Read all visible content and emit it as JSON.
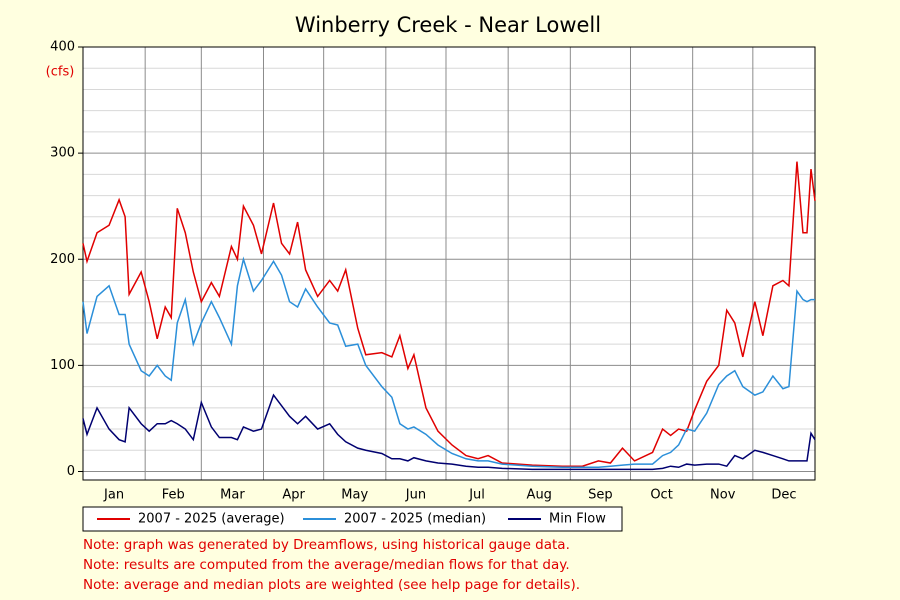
{
  "chart_data": {
    "type": "line",
    "title": "Winberry Creek - Near Lowell",
    "y_label": "(cfs)",
    "x": [
      1,
      3,
      8,
      14,
      19,
      22,
      24,
      30,
      34,
      38,
      42,
      45,
      48,
      52,
      56,
      60,
      65,
      69,
      75,
      78,
      81,
      86,
      90,
      96,
      100,
      104,
      108,
      112,
      118,
      124,
      128,
      132,
      138,
      142,
      150,
      155,
      159,
      163,
      166,
      172,
      178,
      185,
      192,
      198,
      203,
      210,
      225,
      240,
      250,
      258,
      264,
      270,
      276,
      285,
      290,
      294,
      298,
      302,
      306,
      312,
      318,
      322,
      326,
      330,
      336,
      340,
      345,
      350,
      353,
      357,
      360,
      362,
      364,
      366
    ],
    "series": [
      {
        "name": "2007 - 2025 (average)",
        "color": "#e00000",
        "values": [
          215,
          198,
          225,
          232,
          256,
          240,
          167,
          188,
          160,
          125,
          155,
          145,
          248,
          225,
          188,
          160,
          178,
          165,
          212,
          200,
          250,
          232,
          205,
          253,
          215,
          205,
          235,
          190,
          165,
          180,
          170,
          190,
          135,
          110,
          112,
          108,
          128,
          97,
          110,
          60,
          38,
          25,
          15,
          12,
          15,
          8,
          6,
          5,
          5,
          10,
          8,
          22,
          10,
          18,
          40,
          34,
          40,
          38,
          58,
          85,
          100,
          152,
          140,
          108,
          160,
          128,
          175,
          180,
          175,
          292,
          225,
          225,
          285,
          255
        ]
      },
      {
        "name": "2007 - 2025 (median)",
        "color": "#2b8fd9",
        "values": [
          160,
          130,
          165,
          175,
          148,
          148,
          120,
          95,
          90,
          100,
          90,
          86,
          140,
          162,
          120,
          140,
          160,
          145,
          120,
          175,
          200,
          170,
          180,
          198,
          185,
          160,
          155,
          172,
          155,
          140,
          138,
          118,
          120,
          100,
          80,
          70,
          45,
          40,
          42,
          35,
          25,
          17,
          12,
          10,
          10,
          7,
          5,
          4,
          4,
          4,
          5,
          6,
          7,
          7,
          15,
          18,
          25,
          40,
          38,
          55,
          82,
          90,
          95,
          80,
          72,
          75,
          90,
          78,
          80,
          170,
          162,
          160,
          162,
          162
        ]
      },
      {
        "name": "Min Flow",
        "color": "#000070",
        "values": [
          50,
          35,
          60,
          40,
          30,
          28,
          60,
          45,
          38,
          45,
          45,
          48,
          45,
          40,
          30,
          65,
          42,
          32,
          32,
          30,
          42,
          38,
          40,
          72,
          62,
          52,
          45,
          52,
          40,
          45,
          35,
          28,
          22,
          20,
          17,
          12,
          12,
          10,
          13,
          10,
          8,
          7,
          5,
          4,
          4,
          3,
          2,
          2,
          2,
          2,
          2,
          2,
          2,
          2,
          3,
          5,
          4,
          7,
          6,
          7,
          7,
          5,
          15,
          12,
          20,
          18,
          15,
          12,
          10,
          10,
          10,
          10,
          36,
          30
        ]
      }
    ],
    "xlim": [
      1,
      366
    ],
    "xticks": [
      {
        "value": 1,
        "label": "Jan"
      },
      {
        "value": 32,
        "label": "Feb"
      },
      {
        "value": 60,
        "label": "Mar"
      },
      {
        "value": 91,
        "label": "Apr"
      },
      {
        "value": 121,
        "label": "May"
      },
      {
        "value": 152,
        "label": "Jun"
      },
      {
        "value": 182,
        "label": "Jul"
      },
      {
        "value": 213,
        "label": "Aug"
      },
      {
        "value": 244,
        "label": "Sep"
      },
      {
        "value": 274,
        "label": "Oct"
      },
      {
        "value": 305,
        "label": "Nov"
      },
      {
        "value": 335,
        "label": "Dec"
      }
    ],
    "ylim": [
      -8,
      400
    ],
    "yticks": [
      0,
      100,
      200,
      300,
      400
    ],
    "yticks_minor": [
      20,
      40,
      60,
      80,
      120,
      140,
      160,
      180,
      220,
      240,
      260,
      280,
      320,
      340,
      360,
      380
    ],
    "grid": true,
    "notes": [
      "Note: graph was generated by Dreamflows, using historical gauge data.",
      "Note: results are computed from the average/median flows for that day.",
      "Note: average and median plots are weighted (see help page for details)."
    ]
  }
}
